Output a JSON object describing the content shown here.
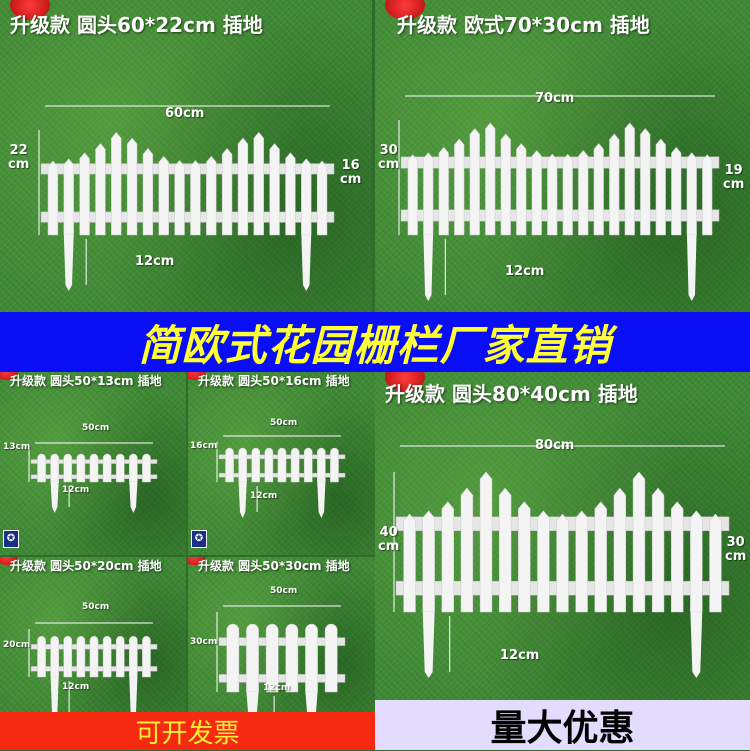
{
  "panels": [
    {
      "id": "p1",
      "title": "升级款 圆头60*22cm 插地",
      "width_label": "60cm",
      "height_label": "22\ncm",
      "inner_label": "16\ncm",
      "stake_label": "12cm",
      "style": "wave-pointed"
    },
    {
      "id": "p2",
      "title": "升级款 欧式70*30cm 插地",
      "width_label": "70cm",
      "height_label": "30\ncm",
      "inner_label": "19\ncm",
      "stake_label": "12cm",
      "style": "wave-pointed"
    },
    {
      "id": "p3",
      "title": "升级款 圆头50*13cm 插地",
      "width_label": "50cm",
      "height_label": "13cm",
      "stake_label": "12cm",
      "style": "round"
    },
    {
      "id": "p4",
      "title": "升级款 圆头50*16cm 插地",
      "width_label": "50cm",
      "height_label": "16cm",
      "stake_label": "12cm",
      "style": "round"
    },
    {
      "id": "p5",
      "title": "升级款 圆头50*20cm 插地",
      "width_label": "50cm",
      "height_label": "20cm",
      "stake_label": "12cm",
      "style": "round"
    },
    {
      "id": "p6",
      "title": "升级款 圆头50*30cm 插地",
      "width_label": "50cm",
      "height_label": "30cm",
      "stake_label": "12cm",
      "style": "round"
    },
    {
      "id": "p7",
      "title": "升级款 圆头80*40cm 插地",
      "width_label": "80cm",
      "height_label": "40\ncm",
      "inner_label": "30\ncm",
      "stake_label": "12cm",
      "style": "wave-pointed"
    }
  ],
  "banner": "简欧式花园栅栏厂家直销",
  "invoice": "可开发票",
  "discount": "量大优惠",
  "colors": {
    "banner_bg": "#0a0ef5",
    "banner_text": "#ffff33",
    "invoice_bg": "#f52a10",
    "invoice_text": "#ffee33",
    "discount_bg": "#e4dcff",
    "grass": "#3f8a35",
    "fence": "#f4f4f4"
  }
}
